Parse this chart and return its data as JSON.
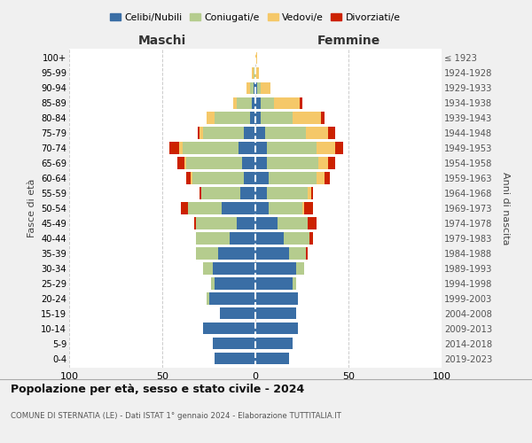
{
  "age_groups": [
    "0-4",
    "5-9",
    "10-14",
    "15-19",
    "20-24",
    "25-29",
    "30-34",
    "35-39",
    "40-44",
    "45-49",
    "50-54",
    "55-59",
    "60-64",
    "65-69",
    "70-74",
    "75-79",
    "80-84",
    "85-89",
    "90-94",
    "95-99",
    "100+"
  ],
  "birth_years": [
    "2019-2023",
    "2014-2018",
    "2009-2013",
    "2004-2008",
    "1999-2003",
    "1994-1998",
    "1989-1993",
    "1984-1988",
    "1979-1983",
    "1974-1978",
    "1969-1973",
    "1964-1968",
    "1959-1963",
    "1954-1958",
    "1949-1953",
    "1944-1948",
    "1939-1943",
    "1934-1938",
    "1929-1933",
    "1924-1928",
    "≤ 1923"
  ],
  "colors": {
    "celibi": "#3a6ea5",
    "coniugati": "#b5cc8e",
    "vedovi": "#f5c869",
    "divorziati": "#cc2200"
  },
  "maschi": {
    "celibi": [
      22,
      23,
      28,
      19,
      25,
      22,
      23,
      20,
      14,
      10,
      18,
      8,
      6,
      7,
      9,
      6,
      3,
      2,
      1,
      0,
      0
    ],
    "coniugati": [
      0,
      0,
      0,
      0,
      1,
      2,
      5,
      12,
      18,
      22,
      18,
      21,
      28,
      30,
      30,
      22,
      19,
      8,
      2,
      1,
      0
    ],
    "vedovi": [
      0,
      0,
      0,
      0,
      0,
      0,
      0,
      0,
      0,
      0,
      0,
      0,
      1,
      1,
      2,
      2,
      4,
      2,
      2,
      1,
      0
    ],
    "divorziati": [
      0,
      0,
      0,
      0,
      0,
      0,
      0,
      0,
      0,
      1,
      4,
      1,
      2,
      4,
      5,
      1,
      0,
      0,
      0,
      0,
      0
    ]
  },
  "femmine": {
    "celibi": [
      18,
      20,
      23,
      22,
      23,
      20,
      22,
      18,
      15,
      12,
      7,
      6,
      7,
      6,
      6,
      5,
      3,
      3,
      1,
      0,
      0
    ],
    "coniugati": [
      0,
      0,
      0,
      0,
      0,
      2,
      4,
      9,
      14,
      16,
      18,
      22,
      26,
      28,
      27,
      22,
      17,
      7,
      2,
      0,
      0
    ],
    "vedovi": [
      0,
      0,
      0,
      0,
      0,
      0,
      0,
      0,
      0,
      0,
      1,
      2,
      4,
      5,
      10,
      12,
      15,
      14,
      5,
      2,
      1
    ],
    "divorziati": [
      0,
      0,
      0,
      0,
      0,
      0,
      0,
      1,
      2,
      5,
      5,
      1,
      3,
      4,
      4,
      4,
      2,
      1,
      0,
      0,
      0
    ]
  },
  "title": "Popolazione per età, sesso e stato civile - 2024",
  "subtitle": "COMUNE DI STERNATIA (LE) - Dati ISTAT 1° gennaio 2024 - Elaborazione TUTTITALIA.IT",
  "xlabel_left": "Maschi",
  "xlabel_right": "Femmine",
  "ylabel_left": "Fasce di età",
  "ylabel_right": "Anni di nascita",
  "xlim": 100,
  "bg_color": "#f0f0f0",
  "plot_bg": "#ffffff"
}
